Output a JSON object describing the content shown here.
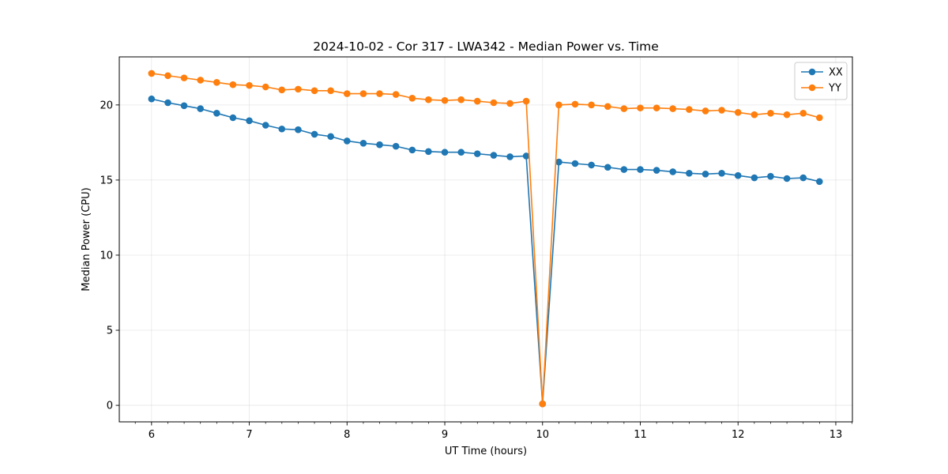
{
  "chart_data": {
    "type": "line",
    "title": "2024-10-02 - Cor 317 - LWA342 - Median Power vs. Time",
    "xlabel": "UT Time (hours)",
    "ylabel": "Median Power (CPU)",
    "xlim": [
      5.67,
      13.17
    ],
    "ylim": [
      -1.1,
      23.2
    ],
    "xticks": [
      6,
      7,
      8,
      9,
      10,
      11,
      12,
      13
    ],
    "yticks": [
      0,
      5,
      10,
      15,
      20
    ],
    "grid": true,
    "legend_position": "top-right",
    "x": [
      6.0,
      6.167,
      6.333,
      6.5,
      6.667,
      6.833,
      7.0,
      7.167,
      7.333,
      7.5,
      7.667,
      7.833,
      8.0,
      8.167,
      8.333,
      8.5,
      8.667,
      8.833,
      9.0,
      9.167,
      9.333,
      9.5,
      9.667,
      9.833,
      10.0,
      10.167,
      10.333,
      10.5,
      10.667,
      10.833,
      11.0,
      11.167,
      11.333,
      11.5,
      11.667,
      11.833,
      12.0,
      12.167,
      12.333,
      12.5,
      12.667,
      12.833
    ],
    "series": [
      {
        "name": "XX",
        "color": "#1f77b4",
        "values": [
          20.4,
          20.15,
          19.95,
          19.75,
          19.45,
          19.15,
          18.95,
          18.65,
          18.4,
          18.35,
          18.05,
          17.9,
          17.6,
          17.45,
          17.35,
          17.25,
          17.0,
          16.9,
          16.85,
          16.85,
          16.75,
          16.65,
          16.55,
          16.6,
          0.1,
          16.2,
          16.1,
          16.0,
          15.85,
          15.7,
          15.7,
          15.65,
          15.55,
          15.45,
          15.4,
          15.45,
          15.3,
          15.15,
          15.25,
          15.1,
          15.15,
          14.9
        ]
      },
      {
        "name": "YY",
        "color": "#ff7f0e",
        "values": [
          22.1,
          21.95,
          21.8,
          21.65,
          21.5,
          21.35,
          21.3,
          21.2,
          21.0,
          21.05,
          20.95,
          20.95,
          20.75,
          20.75,
          20.75,
          20.7,
          20.45,
          20.35,
          20.3,
          20.35,
          20.25,
          20.15,
          20.1,
          20.25,
          0.1,
          20.0,
          20.05,
          20.0,
          19.9,
          19.75,
          19.8,
          19.8,
          19.75,
          19.7,
          19.6,
          19.65,
          19.5,
          19.35,
          19.45,
          19.35,
          19.45,
          19.15
        ]
      }
    ]
  }
}
